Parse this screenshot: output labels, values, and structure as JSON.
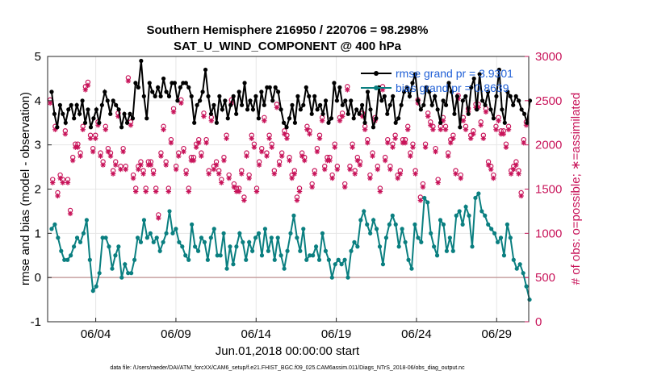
{
  "chart_data": {
    "type": "line",
    "title_line1": "Southern Hemisphere 216950 / 220706 = 98.298%",
    "title_line2": "SAT_U_WIND_COMPONENT @ 400 hPa",
    "ylabel_left": "rmse and bias (model - observation)",
    "ylabel_right": "# of obs: o=possible; ∗=assimilated",
    "xlabel": "Jun.01,2018 00:00:00 start",
    "footer": "data file: /Users/raeder/DAI/ATM_forcXX/CAM6_setup/f.e21.FHIST_BGC.f09_025.CAM6assim.011/Diags_NTrS_2018-06/obs_diag_output.nc",
    "xlim": [
      1.0,
      31.0
    ],
    "ylim_left": [
      -1,
      5
    ],
    "ylim_right": [
      0,
      3000
    ],
    "yticks_left": [
      "-1",
      "0",
      "1",
      "2",
      "3",
      "4",
      "5"
    ],
    "yticks_right": [
      "0",
      "500",
      "1000",
      "1500",
      "2000",
      "2500",
      "3000"
    ],
    "xtick_labels": [
      {
        "day": 4,
        "label": "06/04"
      },
      {
        "day": 9,
        "label": "06/09"
      },
      {
        "day": 14,
        "label": "06/14"
      },
      {
        "day": 19,
        "label": "06/19"
      },
      {
        "day": 24,
        "label": "06/24"
      },
      {
        "day": 29,
        "label": "06/29"
      }
    ],
    "legend": [
      {
        "label": "rmse grand pr = 3.9301",
        "color": "#000000"
      },
      {
        "label": "bias grand pr = 0.8639",
        "color": "#0a7f80"
      }
    ],
    "x_start_day": 1.25,
    "x_step_days": 0.25,
    "series": [
      {
        "name": "rmse",
        "color": "#000000",
        "values": [
          4.2,
          3.7,
          3.4,
          3.9,
          3.7,
          3.5,
          3.8,
          3.9,
          3.6,
          3.9,
          3.7,
          4.0,
          3.5,
          3.8,
          3.4,
          3.6,
          3.8,
          3.5,
          3.9,
          4.2,
          4.0,
          3.7,
          4.0,
          3.9,
          3.8,
          3.4,
          3.7,
          3.5,
          3.7,
          3.6,
          4.4,
          4.3,
          4.9,
          4.1,
          3.6,
          4.4,
          4.2,
          4.1,
          4.3,
          4.1,
          4.5,
          4.2,
          4.1,
          4.4,
          4.4,
          4.0,
          4.3,
          4.4,
          4.4,
          4.3,
          4.1,
          3.5,
          3.9,
          4.0,
          4.2,
          4.7,
          4.1,
          3.7,
          3.9,
          3.5,
          4.1,
          3.8,
          4.0,
          3.6,
          3.9,
          4.1,
          3.7,
          4.2,
          3.9,
          4.4,
          3.8,
          4.0,
          3.8,
          4.1,
          3.6,
          4.2,
          3.9,
          4.3,
          4.3,
          4.0,
          4.3,
          4.2,
          3.8,
          3.5,
          3.4,
          3.6,
          3.9,
          3.5,
          4.1,
          3.8,
          3.9,
          4.3,
          4.1,
          3.7,
          4.1,
          3.8,
          3.9,
          3.7,
          4.0,
          3.5,
          3.6,
          4.4,
          4.0,
          4.3,
          3.9,
          4.0,
          3.7,
          4.0,
          3.6,
          3.8,
          3.7,
          3.9,
          3.5,
          4.2,
          3.8,
          3.4,
          3.6,
          4.3,
          4.0,
          4.1,
          3.7,
          3.9,
          4.1,
          3.5,
          3.6,
          3.9,
          4.2,
          4.3,
          4.1,
          4.4,
          4.6,
          4.0,
          3.8,
          3.9,
          4.3,
          4.2,
          3.9,
          4.1,
          3.8,
          3.5,
          4.0,
          3.9,
          4.4,
          4.2,
          3.7,
          4.1,
          3.4,
          4.0,
          4.1,
          3.7,
          4.3,
          4.5,
          3.8,
          4.6,
          4.0,
          3.9,
          4.2,
          3.8,
          3.6,
          4.1,
          4.7,
          3.8,
          3.5,
          4.2,
          4.1,
          3.9,
          4.1,
          4.0,
          3.8,
          3.7,
          3.5,
          4.0
        ],
        "mask_from_day": 0
      },
      {
        "name": "bias",
        "color": "#0a7f80",
        "values": [
          1.1,
          1.2,
          0.9,
          0.6,
          0.4,
          0.4,
          0.5,
          0.7,
          0.9,
          0.8,
          1.0,
          1.3,
          0.4,
          -0.3,
          -0.2,
          0.1,
          0.9,
          0.9,
          0.7,
          0.2,
          0.5,
          0.7,
          0.0,
          0.3,
          0.1,
          0.1,
          0.4,
          0.9,
          0.8,
          1.3,
          0.9,
          1.0,
          0.8,
          0.9,
          0.6,
          0.8,
          1.0,
          1.5,
          1.0,
          1.1,
          0.8,
          0.7,
          0.5,
          0.4,
          1.2,
          0.7,
          0.6,
          0.9,
          0.8,
          0.4,
          0.9,
          1.1,
          0.5,
          0.5,
          1.0,
          0.2,
          0.7,
          0.3,
          0.7,
          1.0,
          0.8,
          0.4,
          0.8,
          0.6,
          0.9,
          1.0,
          0.5,
          1.1,
          0.6,
          0.9,
          0.4,
          0.9,
          0.5,
          0.2,
          0.6,
          1.0,
          1.4,
          0.9,
          0.6,
          1.1,
          0.4,
          0.5,
          0.5,
          0.7,
          0.4,
          1.0,
          0.6,
          0.4,
          0.0,
          0.3,
          0.4,
          0.3,
          0.4,
          0.0,
          0.6,
          0.8,
          0.7,
          1.3,
          1.5,
          1.2,
          1.0,
          1.3,
          1.1,
          0.7,
          0.3,
          0.9,
          1.2,
          1.4,
          1.2,
          0.7,
          1.1,
          0.8,
          0.4,
          0.2,
          1.2,
          0.9,
          0.8,
          1.8,
          1.7,
          1.0,
          0.7,
          0.5,
          1.3,
          1.2,
          0.6,
          0.9,
          0.6,
          1.4,
          1.5,
          1.2,
          1.6,
          1.4,
          0.7,
          1.8,
          1.9,
          1.5,
          1.4,
          1.2,
          1.1,
          1.0,
          0.8,
          0.9,
          0.5,
          1.2,
          0.9,
          0.4,
          0.2,
          0.3,
          0.1,
          -0.2,
          -0.5
        ],
        "mask_from_day": 0
      },
      {
        "name": "possible",
        "color": "#c8145a",
        "values": [
          2500,
          1600,
          2200,
          1450,
          1650,
          1600,
          2150,
          1600,
          1250,
          1850,
          2000,
          2000,
          1900,
          2200,
          2650,
          2700,
          2100,
          1950,
          2100,
          2250,
          1900,
          1800,
          2200,
          1950,
          1900,
          1700,
          1800,
          2350,
          1750,
          1950,
          1750,
          2750,
          2250,
          1650,
          1500,
          1750,
          1800,
          1700,
          1500,
          1800,
          1800,
          1700,
          1500,
          1200,
          1900,
          2200,
          1800,
          1500,
          2050,
          2400,
          1750,
          1900,
          2500,
          1950,
          1700,
          1500,
          1850,
          1850,
          2000,
          2050,
          1900,
          2350,
          2050,
          1700,
          2300,
          1750,
          1800,
          1700,
          1600,
          1850,
          2100,
          1650,
          2500,
          1550,
          1500,
          1500,
          1700,
          1400,
          1900,
          1650,
          2100,
          2000,
          1500,
          1800,
          1950,
          2300,
          1900,
          2100,
          2000,
          1700,
          2450,
          1800,
          1900,
          2150,
          2100,
          1850,
          1650,
          1700,
          1400,
          1500,
          1900,
          1850,
          2200,
          2150,
          1550,
          1700,
          1950,
          2100,
          2300,
          1750,
          1850,
          1850,
          1650,
          2000,
          1750,
          2300,
          2350,
          1550,
          2650,
          1750,
          2000,
          1700,
          1850,
          1800,
          2350,
          2200,
          2050,
          1650,
          1900,
          2300,
          1750,
          1500,
          2650,
          1850,
          2050,
          1750,
          2000,
          2100,
          1650,
          1700,
          2050,
          2050,
          2200,
          1900,
          2000,
          1700,
          2500,
          1400,
          1550,
          2000,
          2350,
          2250,
          2200,
          1950,
          1600,
          2200,
          2300,
          2200,
          1900,
          2050,
          2100,
          1700,
          2550,
          1650,
          2300,
          2200,
          2400,
          2100,
          2150,
          2450,
          2450,
          2250,
          2100,
          2400,
          1800,
          1750,
          1650,
          2200,
          2300,
          2150,
          2150,
          2000,
          2200,
          1700,
          1750,
          1800,
          1700,
          1450,
          2050,
          2250
        ],
        "mask_from_day": 0
      }
    ]
  }
}
